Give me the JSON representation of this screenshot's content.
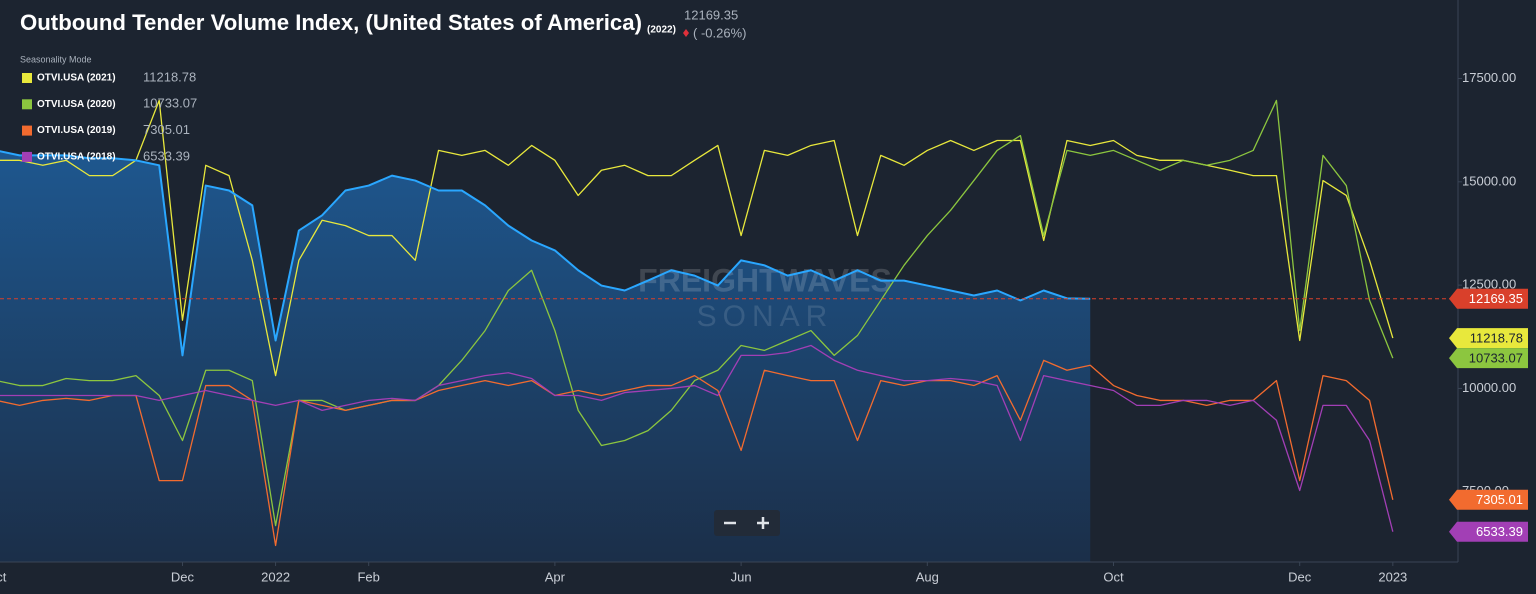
{
  "chart_data": {
    "type": "line",
    "title": "Outbound Tender Volume Index, (United States of America)",
    "change": "( -0.26%)",
    "legend_title": "Seasonality Mode",
    "watermark": [
      "FREIGHTWAVES",
      "SONAR"
    ],
    "x": [
      0,
      0.25,
      0.5,
      0.75,
      1,
      1.25,
      1.5,
      1.75,
      2,
      2.25,
      2.5,
      2.75,
      3,
      3.25,
      3.5,
      3.75,
      4,
      4.25,
      4.5,
      4.75,
      5,
      5.25,
      5.5,
      5.75,
      6,
      6.25,
      6.5,
      6.75,
      7,
      7.25,
      7.5,
      7.75,
      8,
      8.25,
      8.5,
      8.75,
      9,
      9.25,
      9.5,
      9.75,
      10,
      10.25,
      10.5,
      10.75,
      11,
      11.25,
      11.5,
      11.75,
      12,
      12.25,
      12.5,
      12.75,
      13,
      13.25,
      13.5,
      13.75,
      14,
      14.25,
      14.5,
      14.75,
      15
    ],
    "xlim": [
      0.04,
      15.7
    ],
    "xticks": [
      {
        "value": 0,
        "label": "Oct"
      },
      {
        "value": 2,
        "label": "Dec"
      },
      {
        "value": 3,
        "label": "2022"
      },
      {
        "value": 4,
        "label": "Feb"
      },
      {
        "value": 6,
        "label": "Apr"
      },
      {
        "value": 8,
        "label": "Jun"
      },
      {
        "value": 10,
        "label": "Aug"
      },
      {
        "value": 12,
        "label": "Oct"
      },
      {
        "value": 14,
        "label": "Dec"
      },
      {
        "value": 15,
        "label": "2023"
      }
    ],
    "ylim": [
      5800,
      19400
    ],
    "yticks": [
      {
        "value": 7500,
        "label": "7500.00"
      },
      {
        "value": 10000,
        "label": "10000.00"
      },
      {
        "value": 12500,
        "label": "12500.00"
      },
      {
        "value": 15000,
        "label": "15000.00"
      },
      {
        "value": 17500,
        "label": "17500.00"
      }
    ],
    "series": [
      {
        "name": "(2022)",
        "color": "#2aa7ff",
        "area": true,
        "values": [
          15760,
          15640,
          15640,
          15640,
          15570,
          15570,
          15520,
          15400,
          10800,
          14910,
          14790,
          14430,
          11160,
          13820,
          14190,
          14790,
          14910,
          15150,
          15030,
          14790,
          14790,
          14430,
          13940,
          13580,
          13340,
          12860,
          12490,
          12370,
          12610,
          12860,
          12730,
          12490,
          13100,
          12980,
          12730,
          12860,
          12610,
          12860,
          12610,
          12610,
          12490,
          12370,
          12250,
          12370,
          12130,
          12370,
          12180,
          12169.35,
          null,
          null,
          null,
          null,
          null,
          null,
          null,
          null,
          null,
          null,
          null,
          null,
          null
        ]
      },
      {
        "name": "OTVI.USA (2021)",
        "color": "#e8e83c",
        "values": [
          15520,
          15520,
          15400,
          15520,
          15150,
          15150,
          15520,
          16970,
          11650,
          15400,
          15150,
          13100,
          10310,
          13100,
          14070,
          13940,
          13700,
          13700,
          13100,
          15760,
          15640,
          15760,
          15400,
          15880,
          15520,
          14670,
          15280,
          15400,
          15150,
          15150,
          15520,
          15880,
          13700,
          15760,
          15640,
          15880,
          16000,
          13700,
          15640,
          15400,
          15760,
          16000,
          15760,
          16000,
          16000,
          13580,
          16000,
          15880,
          16000,
          15640,
          15520,
          15520,
          15400,
          15280,
          15150,
          15150,
          11160,
          15030,
          14670,
          13100,
          11218.78
        ]
      },
      {
        "name": "OTVI.USA (2020)",
        "color": "#8cc63f",
        "values": [
          10190,
          10070,
          10070,
          10240,
          10190,
          10190,
          10310,
          9830,
          8740,
          10440,
          10440,
          10190,
          6680,
          9710,
          9710,
          9470,
          9590,
          9710,
          9710,
          10070,
          10680,
          11400,
          12370,
          12860,
          11400,
          9470,
          8620,
          8740,
          8980,
          9470,
          10190,
          10440,
          11040,
          10920,
          11160,
          11400,
          10800,
          11280,
          12130,
          12980,
          13700,
          14310,
          15030,
          15760,
          16120,
          13700,
          15760,
          15640,
          15760,
          15520,
          15280,
          15520,
          15400,
          15520,
          15760,
          16970,
          11400,
          15640,
          14910,
          12130,
          10733.07
        ]
      },
      {
        "name": "OTVI.USA (2019)",
        "color": "#f26b2f",
        "values": [
          9710,
          9590,
          9710,
          9760,
          9710,
          9830,
          9830,
          7770,
          7770,
          10070,
          10070,
          9710,
          6200,
          9710,
          9590,
          9470,
          9590,
          9710,
          9710,
          9950,
          10070,
          10190,
          10070,
          10190,
          9830,
          9950,
          9830,
          9950,
          10070,
          10070,
          10310,
          9950,
          8500,
          10440,
          10310,
          10190,
          10190,
          8740,
          10190,
          10070,
          10190,
          10190,
          10070,
          10310,
          9230,
          10680,
          10440,
          10560,
          10070,
          9830,
          9710,
          9710,
          9590,
          9710,
          9710,
          10190,
          7770,
          10310,
          10190,
          9710,
          7305.01
        ]
      },
      {
        "name": "OTVI.USA (2018)",
        "color": "#a23fb5",
        "values": [
          9830,
          9830,
          9830,
          9830,
          9830,
          9830,
          9830,
          9710,
          9830,
          9950,
          9830,
          9710,
          9590,
          9710,
          9470,
          9590,
          9710,
          9760,
          9710,
          10070,
          10190,
          10310,
          10380,
          10240,
          9830,
          9830,
          9710,
          9900,
          9950,
          10000,
          10070,
          9830,
          10800,
          10800,
          10870,
          11040,
          10680,
          10440,
          10310,
          10190,
          10190,
          10240,
          10190,
          10070,
          8740,
          10310,
          10190,
          10070,
          9950,
          9590,
          9590,
          9710,
          9710,
          9590,
          9710,
          9230,
          7530,
          9590,
          9590,
          8740,
          6533.39
        ]
      }
    ],
    "reference_line": {
      "series": 0,
      "color": "#d9402b"
    }
  }
}
